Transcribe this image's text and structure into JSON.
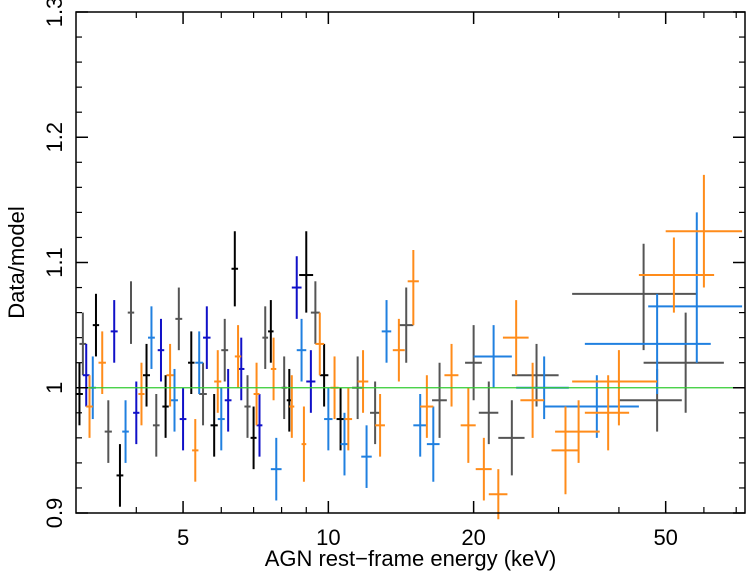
{
  "chart_data": {
    "type": "scatter",
    "title": "",
    "xlabel": "AGN rest−frame energy (keV)",
    "ylabel": "Data/model",
    "x_scale": "log",
    "xlim": [
      3.0,
      73.0
    ],
    "ylim": [
      0.9,
      1.3
    ],
    "x_ticks": [
      5,
      10,
      20,
      50
    ],
    "x_tick_labels": [
      "5",
      "10",
      "20",
      "50"
    ],
    "y_ticks": [
      0.9,
      1.0,
      1.1,
      1.2,
      1.3
    ],
    "y_tick_labels": [
      "0.9",
      "1",
      "1.1",
      "1.2",
      "1.3"
    ],
    "grid": false,
    "legend": "none",
    "reference_line": {
      "y": 1.0,
      "color": "#33cc33"
    },
    "colors": {
      "black": "#000000",
      "gray": "#555555",
      "navy": "#1010c8",
      "blue": "#2080e0",
      "orange": "#ff8c1a"
    },
    "series": [
      {
        "color_key": "black",
        "points": [
          {
            "x": 3.05,
            "xlo": 3.0,
            "xhi": 3.1,
            "y": 0.995,
            "ylo": 0.97,
            "yhi": 1.02
          },
          {
            "x": 3.3,
            "xlo": 3.25,
            "xhi": 3.35,
            "y": 1.05,
            "ylo": 1.025,
            "yhi": 1.075
          },
          {
            "x": 3.7,
            "xlo": 3.64,
            "xhi": 3.76,
            "y": 0.93,
            "ylo": 0.905,
            "yhi": 0.955
          },
          {
            "x": 4.2,
            "xlo": 4.13,
            "xhi": 4.27,
            "y": 1.01,
            "ylo": 0.985,
            "yhi": 1.035
          },
          {
            "x": 4.6,
            "xlo": 4.53,
            "xhi": 4.67,
            "y": 0.985,
            "ylo": 0.96,
            "yhi": 1.01
          },
          {
            "x": 5.2,
            "xlo": 5.12,
            "xhi": 5.28,
            "y": 1.02,
            "ylo": 0.995,
            "yhi": 1.045
          },
          {
            "x": 5.8,
            "xlo": 5.7,
            "xhi": 5.9,
            "y": 0.97,
            "ylo": 0.945,
            "yhi": 0.995
          },
          {
            "x": 6.4,
            "xlo": 6.3,
            "xhi": 6.5,
            "y": 1.095,
            "ylo": 1.065,
            "yhi": 1.125
          },
          {
            "x": 7.0,
            "xlo": 6.9,
            "xhi": 7.1,
            "y": 0.96,
            "ylo": 0.935,
            "yhi": 0.985
          },
          {
            "x": 7.6,
            "xlo": 7.5,
            "xhi": 7.7,
            "y": 1.045,
            "ylo": 1.02,
            "yhi": 1.07
          },
          {
            "x": 8.3,
            "xlo": 8.2,
            "xhi": 8.4,
            "y": 0.99,
            "ylo": 0.965,
            "yhi": 1.015
          },
          {
            "x": 9.0,
            "xlo": 8.7,
            "xhi": 9.3,
            "y": 1.09,
            "ylo": 1.06,
            "yhi": 1.125
          },
          {
            "x": 9.8,
            "xlo": 9.6,
            "xhi": 10.0,
            "y": 1.01,
            "ylo": 0.985,
            "yhi": 1.035
          },
          {
            "x": 10.6,
            "xlo": 10.4,
            "xhi": 10.8,
            "y": 0.975,
            "ylo": 0.95,
            "yhi": 1.0
          }
        ]
      },
      {
        "color_key": "gray",
        "points": [
          {
            "x": 3.1,
            "xlo": 3.05,
            "xhi": 3.15,
            "y": 1.035,
            "ylo": 1.01,
            "yhi": 1.06
          },
          {
            "x": 3.5,
            "xlo": 3.44,
            "xhi": 3.56,
            "y": 0.965,
            "ylo": 0.94,
            "yhi": 0.99
          },
          {
            "x": 3.9,
            "xlo": 3.84,
            "xhi": 3.96,
            "y": 1.06,
            "ylo": 1.035,
            "yhi": 1.085
          },
          {
            "x": 4.4,
            "xlo": 4.33,
            "xhi": 4.47,
            "y": 0.97,
            "ylo": 0.945,
            "yhi": 0.995
          },
          {
            "x": 4.9,
            "xlo": 4.82,
            "xhi": 4.98,
            "y": 1.055,
            "ylo": 1.03,
            "yhi": 1.08
          },
          {
            "x": 5.5,
            "xlo": 5.4,
            "xhi": 5.6,
            "y": 0.995,
            "ylo": 0.97,
            "yhi": 1.02
          },
          {
            "x": 6.1,
            "xlo": 6.0,
            "xhi": 6.2,
            "y": 1.03,
            "ylo": 1.005,
            "yhi": 1.055
          },
          {
            "x": 6.8,
            "xlo": 6.7,
            "xhi": 6.9,
            "y": 0.985,
            "ylo": 0.96,
            "yhi": 1.01
          },
          {
            "x": 7.4,
            "xlo": 7.3,
            "xhi": 7.5,
            "y": 1.04,
            "ylo": 1.015,
            "yhi": 1.065
          },
          {
            "x": 8.1,
            "xlo": 8.0,
            "xhi": 8.2,
            "y": 1.0,
            "ylo": 0.975,
            "yhi": 1.025
          },
          {
            "x": 9.4,
            "xlo": 9.2,
            "xhi": 9.6,
            "y": 1.06,
            "ylo": 1.035,
            "yhi": 1.085
          },
          {
            "x": 11.5,
            "xlo": 11.2,
            "xhi": 11.8,
            "y": 1.0,
            "ylo": 0.975,
            "yhi": 1.025
          },
          {
            "x": 12.5,
            "xlo": 12.2,
            "xhi": 12.8,
            "y": 0.98,
            "ylo": 0.955,
            "yhi": 1.005
          },
          {
            "x": 14.5,
            "xlo": 14.0,
            "xhi": 15.0,
            "y": 1.05,
            "ylo": 1.02,
            "yhi": 1.08
          },
          {
            "x": 17.0,
            "xlo": 16.4,
            "xhi": 17.6,
            "y": 0.99,
            "ylo": 0.96,
            "yhi": 1.02
          },
          {
            "x": 20.0,
            "xlo": 19.2,
            "xhi": 20.8,
            "y": 1.02,
            "ylo": 0.99,
            "yhi": 1.05
          },
          {
            "x": 21.5,
            "xlo": 20.5,
            "xhi": 22.5,
            "y": 0.98,
            "ylo": 0.955,
            "yhi": 1.005
          },
          {
            "x": 24.0,
            "xlo": 22.5,
            "xhi": 25.5,
            "y": 0.96,
            "ylo": 0.93,
            "yhi": 0.99
          },
          {
            "x": 27.0,
            "xlo": 24.0,
            "xhi": 30.0,
            "y": 1.01,
            "ylo": 0.985,
            "yhi": 1.035
          },
          {
            "x": 45.0,
            "xlo": 32.0,
            "xhi": 58.0,
            "y": 1.075,
            "ylo": 1.03,
            "yhi": 1.115
          },
          {
            "x": 48.0,
            "xlo": 40.0,
            "xhi": 54.0,
            "y": 0.99,
            "ylo": 0.965,
            "yhi": 1.015
          },
          {
            "x": 55.0,
            "xlo": 45.0,
            "xhi": 66.0,
            "y": 1.02,
            "ylo": 0.98,
            "yhi": 1.06
          }
        ]
      },
      {
        "color_key": "navy",
        "points": [
          {
            "x": 3.15,
            "xlo": 3.1,
            "xhi": 3.2,
            "y": 1.01,
            "ylo": 0.985,
            "yhi": 1.035
          },
          {
            "x": 3.6,
            "xlo": 3.54,
            "xhi": 3.66,
            "y": 1.045,
            "ylo": 1.02,
            "yhi": 1.07
          },
          {
            "x": 4.0,
            "xlo": 3.94,
            "xhi": 4.06,
            "y": 0.98,
            "ylo": 0.955,
            "yhi": 1.005
          },
          {
            "x": 4.5,
            "xlo": 4.43,
            "xhi": 4.57,
            "y": 1.03,
            "ylo": 1.005,
            "yhi": 1.055
          },
          {
            "x": 5.0,
            "xlo": 4.92,
            "xhi": 5.08,
            "y": 0.975,
            "ylo": 0.95,
            "yhi": 1.0
          },
          {
            "x": 5.6,
            "xlo": 5.5,
            "xhi": 5.7,
            "y": 1.04,
            "ylo": 1.015,
            "yhi": 1.065
          },
          {
            "x": 6.2,
            "xlo": 6.1,
            "xhi": 6.3,
            "y": 0.99,
            "ylo": 0.965,
            "yhi": 1.015
          },
          {
            "x": 6.6,
            "xlo": 6.5,
            "xhi": 6.7,
            "y": 1.015,
            "ylo": 0.99,
            "yhi": 1.04
          },
          {
            "x": 7.2,
            "xlo": 7.1,
            "xhi": 7.3,
            "y": 0.97,
            "ylo": 0.945,
            "yhi": 0.995
          },
          {
            "x": 8.6,
            "xlo": 8.4,
            "xhi": 8.8,
            "y": 1.08,
            "ylo": 1.055,
            "yhi": 1.105
          },
          {
            "x": 9.2,
            "xlo": 9.0,
            "xhi": 9.4,
            "y": 1.005,
            "ylo": 0.98,
            "yhi": 1.03
          }
        ]
      },
      {
        "color_key": "blue",
        "points": [
          {
            "x": 3.25,
            "xlo": 3.2,
            "xhi": 3.3,
            "y": 1.0,
            "ylo": 0.975,
            "yhi": 1.025
          },
          {
            "x": 3.8,
            "xlo": 3.74,
            "xhi": 3.86,
            "y": 0.965,
            "ylo": 0.94,
            "yhi": 0.99
          },
          {
            "x": 4.3,
            "xlo": 4.23,
            "xhi": 4.37,
            "y": 1.04,
            "ylo": 1.015,
            "yhi": 1.065
          },
          {
            "x": 4.8,
            "xlo": 4.72,
            "xhi": 4.88,
            "y": 0.99,
            "ylo": 0.965,
            "yhi": 1.015
          },
          {
            "x": 5.4,
            "xlo": 5.3,
            "xhi": 5.5,
            "y": 1.02,
            "ylo": 0.995,
            "yhi": 1.045
          },
          {
            "x": 6.0,
            "xlo": 5.9,
            "xhi": 6.1,
            "y": 0.975,
            "ylo": 0.95,
            "yhi": 1.0
          },
          {
            "x": 7.8,
            "xlo": 7.6,
            "xhi": 8.0,
            "y": 0.935,
            "ylo": 0.91,
            "yhi": 0.96
          },
          {
            "x": 8.8,
            "xlo": 8.6,
            "xhi": 9.0,
            "y": 1.03,
            "ylo": 1.005,
            "yhi": 1.055
          },
          {
            "x": 10.0,
            "xlo": 9.8,
            "xhi": 10.2,
            "y": 0.975,
            "ylo": 0.95,
            "yhi": 1.0
          },
          {
            "x": 10.8,
            "xlo": 10.6,
            "xhi": 11.0,
            "y": 0.955,
            "ylo": 0.93,
            "yhi": 0.98
          },
          {
            "x": 12.0,
            "xlo": 11.7,
            "xhi": 12.3,
            "y": 0.945,
            "ylo": 0.92,
            "yhi": 0.97
          },
          {
            "x": 13.2,
            "xlo": 12.9,
            "xhi": 13.5,
            "y": 1.045,
            "ylo": 1.02,
            "yhi": 1.07
          },
          {
            "x": 15.5,
            "xlo": 15.0,
            "xhi": 16.0,
            "y": 0.97,
            "ylo": 0.945,
            "yhi": 0.995
          },
          {
            "x": 16.5,
            "xlo": 16.0,
            "xhi": 17.0,
            "y": 0.955,
            "ylo": 0.925,
            "yhi": 0.985
          },
          {
            "x": 22.0,
            "xlo": 20.0,
            "xhi": 24.0,
            "y": 1.025,
            "ylo": 1.0,
            "yhi": 1.05
          },
          {
            "x": 28.0,
            "xlo": 24.5,
            "xhi": 31.5,
            "y": 1.0,
            "ylo": 0.975,
            "yhi": 1.025
          },
          {
            "x": 36.0,
            "xlo": 28.0,
            "xhi": 44.0,
            "y": 0.985,
            "ylo": 0.96,
            "yhi": 1.01
          },
          {
            "x": 48.0,
            "xlo": 34.0,
            "xhi": 62.0,
            "y": 1.035,
            "ylo": 0.995,
            "yhi": 1.075
          },
          {
            "x": 58.0,
            "xlo": 46.0,
            "xhi": 72.0,
            "y": 1.065,
            "ylo": 1.02,
            "yhi": 1.14
          }
        ]
      },
      {
        "color_key": "orange",
        "points": [
          {
            "x": 3.2,
            "xlo": 3.15,
            "xhi": 3.25,
            "y": 0.985,
            "ylo": 0.96,
            "yhi": 1.01
          },
          {
            "x": 3.4,
            "xlo": 3.34,
            "xhi": 3.46,
            "y": 1.02,
            "ylo": 0.995,
            "yhi": 1.045
          },
          {
            "x": 4.1,
            "xlo": 4.04,
            "xhi": 4.16,
            "y": 0.995,
            "ylo": 0.97,
            "yhi": 1.02
          },
          {
            "x": 4.7,
            "xlo": 4.62,
            "xhi": 4.78,
            "y": 1.01,
            "ylo": 0.985,
            "yhi": 1.035
          },
          {
            "x": 5.3,
            "xlo": 5.22,
            "xhi": 5.38,
            "y": 0.95,
            "ylo": 0.925,
            "yhi": 0.975
          },
          {
            "x": 5.9,
            "xlo": 5.8,
            "xhi": 6.0,
            "y": 1.005,
            "ylo": 0.98,
            "yhi": 1.03
          },
          {
            "x": 6.5,
            "xlo": 6.4,
            "xhi": 6.6,
            "y": 1.025,
            "ylo": 1.0,
            "yhi": 1.05
          },
          {
            "x": 7.1,
            "xlo": 7.0,
            "xhi": 7.2,
            "y": 0.995,
            "ylo": 0.97,
            "yhi": 1.02
          },
          {
            "x": 7.7,
            "xlo": 7.6,
            "xhi": 7.8,
            "y": 1.015,
            "ylo": 0.99,
            "yhi": 1.04
          },
          {
            "x": 8.4,
            "xlo": 8.3,
            "xhi": 8.5,
            "y": 0.985,
            "ylo": 0.96,
            "yhi": 1.01
          },
          {
            "x": 8.9,
            "xlo": 8.8,
            "xhi": 9.0,
            "y": 0.955,
            "ylo": 0.925,
            "yhi": 0.985
          },
          {
            "x": 9.6,
            "xlo": 9.4,
            "xhi": 9.8,
            "y": 1.035,
            "ylo": 1.01,
            "yhi": 1.06
          },
          {
            "x": 10.3,
            "xlo": 10.1,
            "xhi": 10.5,
            "y": 1.0,
            "ylo": 0.975,
            "yhi": 1.025
          },
          {
            "x": 11.0,
            "xlo": 10.8,
            "xhi": 11.2,
            "y": 0.975,
            "ylo": 0.95,
            "yhi": 1.0
          },
          {
            "x": 11.8,
            "xlo": 11.5,
            "xhi": 12.1,
            "y": 1.005,
            "ylo": 0.98,
            "yhi": 1.03
          },
          {
            "x": 12.8,
            "xlo": 12.5,
            "xhi": 13.1,
            "y": 0.97,
            "ylo": 0.945,
            "yhi": 0.995
          },
          {
            "x": 14.0,
            "xlo": 13.6,
            "xhi": 14.4,
            "y": 1.03,
            "ylo": 1.005,
            "yhi": 1.055
          },
          {
            "x": 15.0,
            "xlo": 14.6,
            "xhi": 15.4,
            "y": 1.085,
            "ylo": 1.05,
            "yhi": 1.11
          },
          {
            "x": 16.0,
            "xlo": 15.5,
            "xhi": 16.5,
            "y": 0.985,
            "ylo": 0.96,
            "yhi": 1.01
          },
          {
            "x": 18.0,
            "xlo": 17.4,
            "xhi": 18.6,
            "y": 1.01,
            "ylo": 0.985,
            "yhi": 1.035
          },
          {
            "x": 19.5,
            "xlo": 18.8,
            "xhi": 20.2,
            "y": 0.97,
            "ylo": 0.94,
            "yhi": 1.0
          },
          {
            "x": 21.0,
            "xlo": 20.2,
            "xhi": 21.8,
            "y": 0.935,
            "ylo": 0.91,
            "yhi": 0.96
          },
          {
            "x": 22.5,
            "xlo": 21.5,
            "xhi": 23.5,
            "y": 0.915,
            "ylo": 0.895,
            "yhi": 0.935
          },
          {
            "x": 24.5,
            "xlo": 23.0,
            "xhi": 26.0,
            "y": 1.04,
            "ylo": 1.01,
            "yhi": 1.07
          },
          {
            "x": 26.5,
            "xlo": 25.0,
            "xhi": 28.0,
            "y": 0.99,
            "ylo": 0.96,
            "yhi": 1.02
          },
          {
            "x": 31.0,
            "xlo": 29.0,
            "xhi": 33.0,
            "y": 0.95,
            "ylo": 0.915,
            "yhi": 0.985
          },
          {
            "x": 33.0,
            "xlo": 29.5,
            "xhi": 36.5,
            "y": 0.965,
            "ylo": 0.94,
            "yhi": 0.99
          },
          {
            "x": 38.0,
            "xlo": 34.0,
            "xhi": 42.0,
            "y": 0.98,
            "ylo": 0.95,
            "yhi": 1.01
          },
          {
            "x": 40.0,
            "xlo": 32.0,
            "xhi": 48.0,
            "y": 1.005,
            "ylo": 0.97,
            "yhi": 1.03
          },
          {
            "x": 52.0,
            "xlo": 44.0,
            "xhi": 63.0,
            "y": 1.09,
            "ylo": 1.06,
            "yhi": 1.12
          },
          {
            "x": 60.0,
            "xlo": 50.0,
            "xhi": 72.0,
            "y": 1.125,
            "ylo": 1.08,
            "yhi": 1.17
          }
        ]
      }
    ]
  }
}
